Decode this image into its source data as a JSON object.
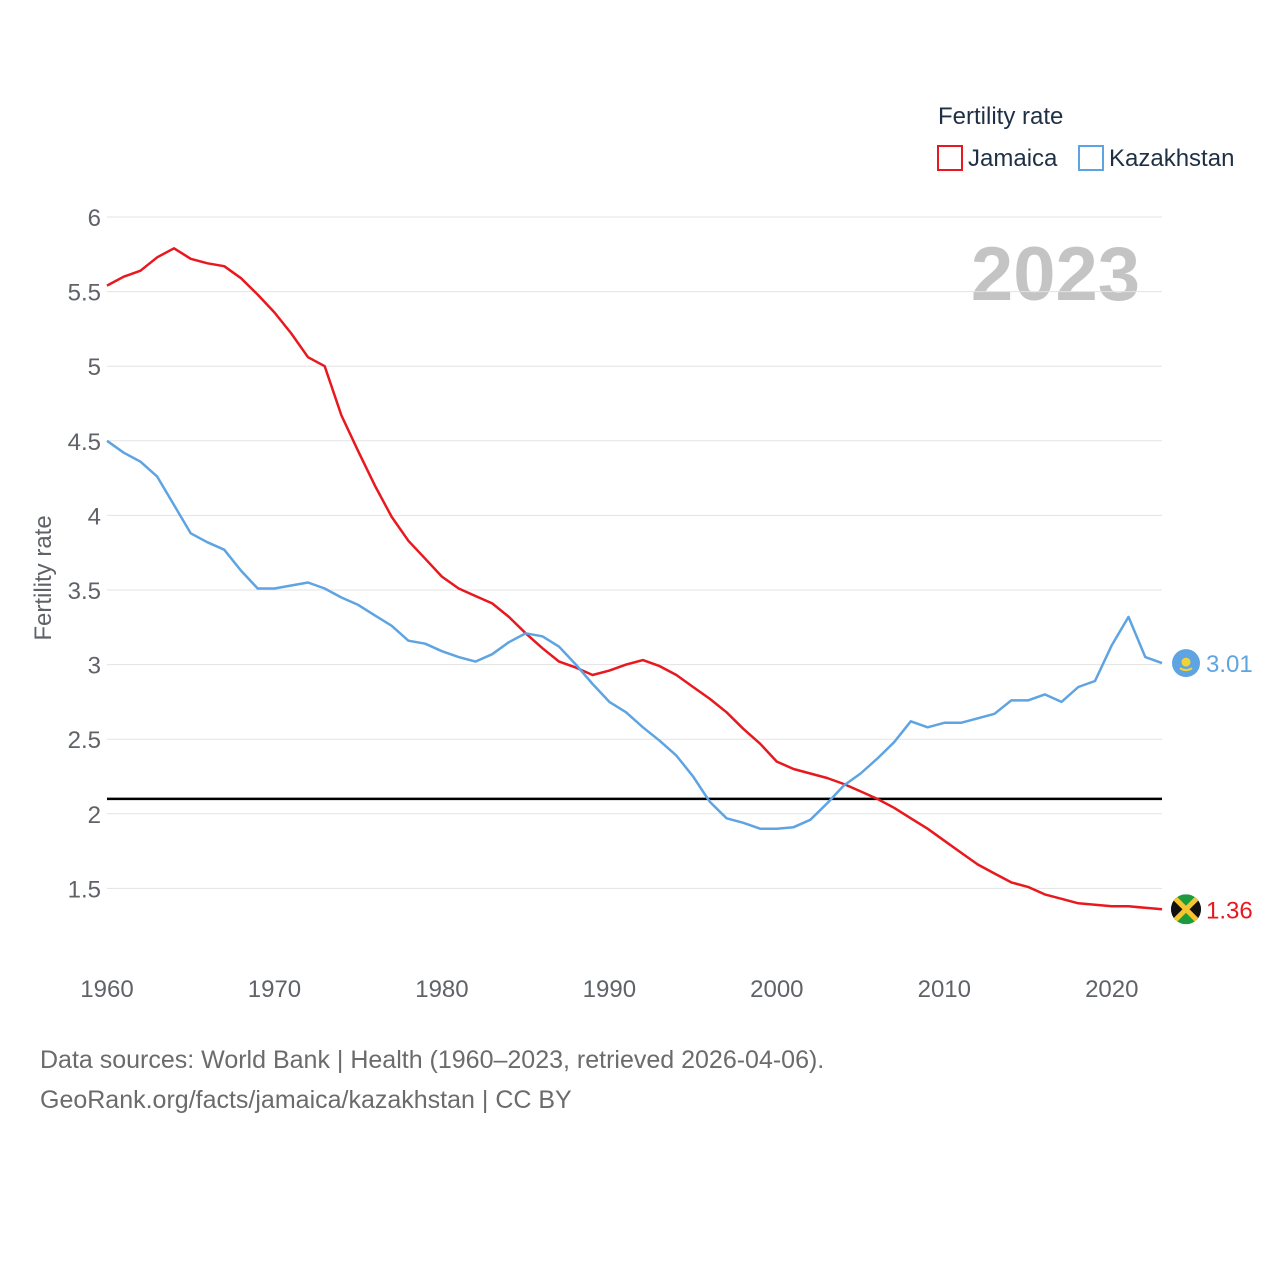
{
  "chart_data": {
    "type": "line",
    "title": "Fertility rate",
    "legend_title": "Fertility rate",
    "ylabel": "Fertility rate",
    "xlabel": "",
    "year_label": "2023",
    "xlim": [
      1960,
      2023
    ],
    "ylim": [
      1.0,
      6.0
    ],
    "x_ticks": [
      1960,
      1970,
      1980,
      1990,
      2000,
      2010,
      2020
    ],
    "y_ticks": [
      1.5,
      2,
      2.5,
      3,
      3.5,
      4,
      4.5,
      5,
      5.5,
      6
    ],
    "y_tick_labels": [
      "1.5",
      "2",
      "2.5",
      "3",
      "3.5",
      "4",
      "4.5",
      "5",
      "5.5",
      "6"
    ],
    "x_tick_labels": [
      "1960",
      "1970",
      "1980",
      "1990",
      "2000",
      "2010",
      "2020"
    ],
    "reference_line": {
      "y": 2.1,
      "color": "#000000"
    },
    "legend_position": "top-right",
    "series": [
      {
        "name": "Jamaica",
        "color": "#e8191e",
        "end_label": "1.36",
        "flag": "jamaica-flag",
        "x": [
          1960,
          1961,
          1962,
          1963,
          1964,
          1965,
          1966,
          1967,
          1968,
          1969,
          1970,
          1971,
          1972,
          1973,
          1974,
          1975,
          1976,
          1977,
          1978,
          1979,
          1980,
          1981,
          1982,
          1983,
          1984,
          1985,
          1986,
          1987,
          1988,
          1989,
          1990,
          1991,
          1992,
          1993,
          1994,
          1995,
          1996,
          1997,
          1998,
          1999,
          2000,
          2001,
          2002,
          2003,
          2004,
          2005,
          2006,
          2007,
          2008,
          2009,
          2010,
          2011,
          2012,
          2013,
          2014,
          2015,
          2016,
          2017,
          2018,
          2019,
          2020,
          2021,
          2022,
          2023
        ],
        "values": [
          5.54,
          5.6,
          5.64,
          5.73,
          5.79,
          5.72,
          5.69,
          5.67,
          5.59,
          5.48,
          5.36,
          5.22,
          5.06,
          5.0,
          4.67,
          4.43,
          4.2,
          3.99,
          3.83,
          3.71,
          3.59,
          3.51,
          3.46,
          3.41,
          3.32,
          3.21,
          3.11,
          3.02,
          2.98,
          2.93,
          2.96,
          3.0,
          3.03,
          2.99,
          2.93,
          2.85,
          2.77,
          2.68,
          2.57,
          2.47,
          2.35,
          2.3,
          2.27,
          2.24,
          2.2,
          2.15,
          2.1,
          2.04,
          1.97,
          1.9,
          1.82,
          1.74,
          1.66,
          1.6,
          1.54,
          1.51,
          1.46,
          1.43,
          1.4,
          1.39,
          1.38,
          1.38,
          1.37,
          1.36
        ]
      },
      {
        "name": "Kazakhstan",
        "color": "#5ea4e3",
        "end_label": "3.01",
        "flag": "kazakhstan-flag",
        "x": [
          1960,
          1961,
          1962,
          1963,
          1964,
          1965,
          1966,
          1967,
          1968,
          1969,
          1970,
          1971,
          1972,
          1973,
          1974,
          1975,
          1976,
          1977,
          1978,
          1979,
          1980,
          1981,
          1982,
          1983,
          1984,
          1985,
          1986,
          1987,
          1988,
          1989,
          1990,
          1991,
          1992,
          1993,
          1994,
          1995,
          1996,
          1997,
          1998,
          1999,
          2000,
          2001,
          2002,
          2003,
          2004,
          2005,
          2006,
          2007,
          2008,
          2009,
          2010,
          2011,
          2012,
          2013,
          2014,
          2015,
          2016,
          2017,
          2018,
          2019,
          2020,
          2021,
          2022,
          2023
        ],
        "values": [
          4.5,
          4.42,
          4.36,
          4.26,
          4.07,
          3.88,
          3.82,
          3.77,
          3.63,
          3.51,
          3.51,
          3.53,
          3.55,
          3.51,
          3.45,
          3.4,
          3.33,
          3.26,
          3.16,
          3.14,
          3.09,
          3.05,
          3.02,
          3.07,
          3.15,
          3.21,
          3.19,
          3.12,
          3.0,
          2.87,
          2.75,
          2.68,
          2.58,
          2.49,
          2.39,
          2.25,
          2.08,
          1.97,
          1.94,
          1.9,
          1.9,
          1.91,
          1.96,
          2.07,
          2.19,
          2.27,
          2.37,
          2.48,
          2.62,
          2.58,
          2.61,
          2.61,
          2.64,
          2.67,
          2.76,
          2.76,
          2.8,
          2.75,
          2.85,
          2.89,
          3.13,
          3.32,
          3.05,
          3.01
        ]
      }
    ]
  },
  "footer": {
    "line1": "Data sources: World Bank | Health (1960–2023, retrieved 2026-04-06).",
    "line2": "GeoRank.org/facts/jamaica/kazakhstan | CC BY"
  }
}
